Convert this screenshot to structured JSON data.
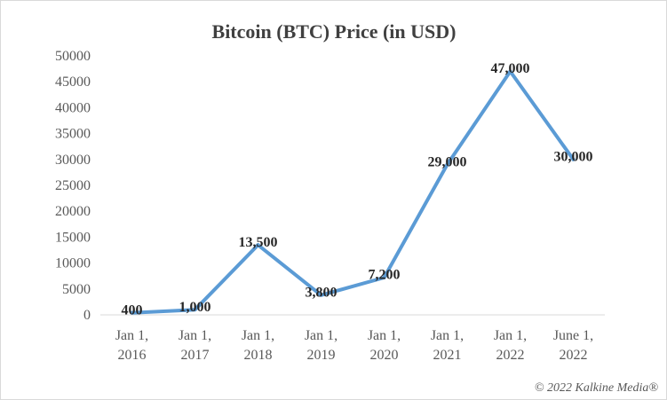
{
  "chart_data": {
    "type": "line",
    "title": "Bitcoin (BTC) Price (in USD)",
    "xlabel": "",
    "ylabel": "",
    "categories": [
      [
        "Jan 1,",
        "2016"
      ],
      [
        "Jan 1,",
        "2017"
      ],
      [
        "Jan 1,",
        "2018"
      ],
      [
        "Jan 1,",
        "2019"
      ],
      [
        "Jan 1,",
        "2020"
      ],
      [
        "Jan 1,",
        "2021"
      ],
      [
        "Jan 1,",
        "2022"
      ],
      [
        "June 1,",
        "2022"
      ]
    ],
    "series": [
      {
        "values": [
          400,
          1000,
          13500,
          3800,
          7200,
          29000,
          47000,
          30000
        ],
        "data_labels": [
          "400",
          "1,000",
          "13,500",
          "3,800",
          "7,200",
          "29,000",
          "47,000",
          "30,000"
        ],
        "color": "#5b9bd5"
      }
    ],
    "ylim": [
      0,
      50000
    ],
    "yticks": [
      "0",
      "5000",
      "10000",
      "15000",
      "20000",
      "25000",
      "30000",
      "35000",
      "40000",
      "45000",
      "50000"
    ],
    "grid": false,
    "legend": "none"
  },
  "footer": {
    "copyright": "© 2022 Kalkine Media®"
  }
}
